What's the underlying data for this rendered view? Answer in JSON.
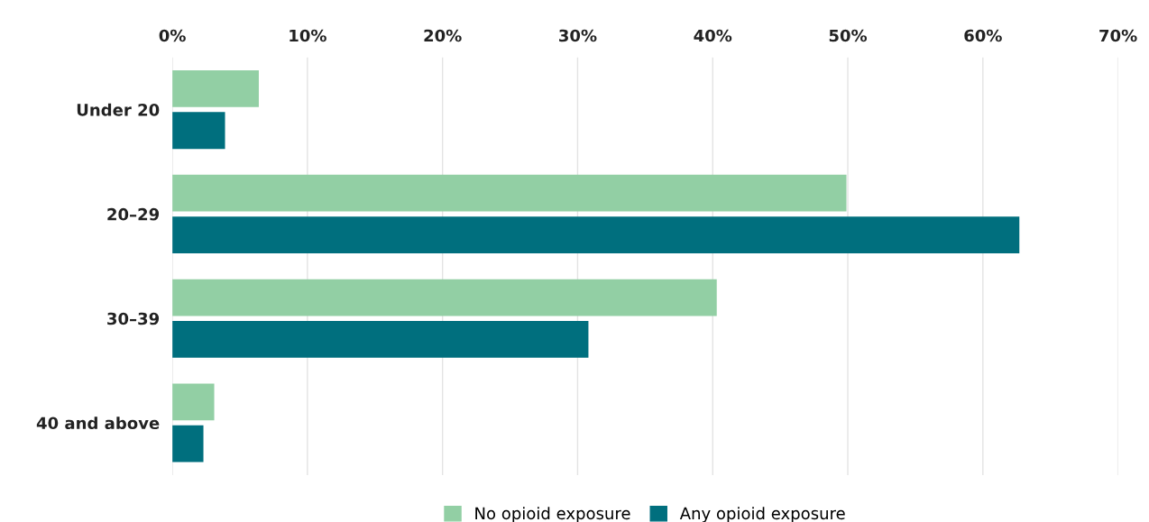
{
  "chart_data": {
    "type": "bar",
    "orientation": "horizontal",
    "categories": [
      "Under 20",
      "20–29",
      "30–39",
      "40 and above"
    ],
    "series": [
      {
        "name": "No opioid exposure",
        "color": "#92cfa4",
        "values": [
          6.4,
          49.9,
          40.3,
          3.1
        ]
      },
      {
        "name": "Any opioid exposure",
        "color": "#006f7e",
        "values": [
          3.9,
          62.7,
          30.8,
          2.3
        ]
      }
    ],
    "xlim": [
      0,
      70
    ],
    "xticks": [
      {
        "value": 0,
        "label": "0%"
      },
      {
        "value": 10,
        "label": "10%"
      },
      {
        "value": 20,
        "label": "20%"
      },
      {
        "value": 30,
        "label": "30%"
      },
      {
        "value": 40,
        "label": "40%"
      },
      {
        "value": 50,
        "label": "50%"
      },
      {
        "value": 60,
        "label": "60%"
      },
      {
        "value": 70,
        "label": "70%"
      }
    ],
    "grid": "x",
    "legend": "bottom"
  }
}
